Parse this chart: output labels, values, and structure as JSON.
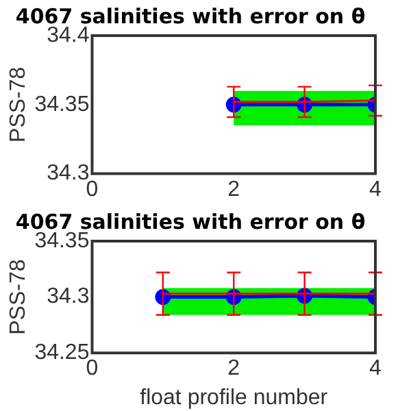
{
  "chart_data": [
    {
      "type": "line",
      "title": "4067 salinities with error on θ",
      "ylabel": "PSS-78",
      "xlim": [
        0,
        4
      ],
      "xticks": [
        0,
        2,
        4
      ],
      "ylim": [
        34.3,
        34.4
      ],
      "yticks": [
        34.3,
        34.35,
        34.4
      ],
      "grid": false,
      "legend": false,
      "series": [
        {
          "type": "area",
          "color": "#00ee00",
          "x": [
            2,
            3,
            4
          ],
          "values": [
            null,
            null,
            null
          ],
          "lower": [
            34.335,
            34.335,
            34.335
          ],
          "upper": [
            34.36,
            34.36,
            34.36
          ]
        },
        {
          "type": "line",
          "color": "#ff0000",
          "x": [
            2,
            3,
            4
          ],
          "values": [
            34.352,
            34.352,
            34.353
          ],
          "errors": [
            0.011,
            0.011,
            0.011
          ],
          "marker": "none"
        },
        {
          "type": "line",
          "color": "#0000ff",
          "x": [
            2,
            3,
            4
          ],
          "values": [
            34.35,
            34.35,
            34.35
          ],
          "marker": "circle"
        }
      ]
    },
    {
      "type": "line",
      "title": "4067 salinities with error on θ",
      "ylabel": "PSS-78",
      "xlabel": "float profile number",
      "xlim": [
        0,
        4
      ],
      "xticks": [
        0,
        2,
        4
      ],
      "ylim": [
        34.25,
        34.35
      ],
      "yticks": [
        34.25,
        34.3,
        34.35
      ],
      "grid": false,
      "legend": false,
      "series": [
        {
          "type": "area",
          "color": "#00ee00",
          "x": [
            1,
            2,
            3,
            4
          ],
          "values": [
            null,
            null,
            null,
            null
          ],
          "lower": [
            34.284,
            34.284,
            34.284,
            34.284
          ],
          "upper": [
            34.308,
            34.308,
            34.308,
            34.308
          ]
        },
        {
          "type": "line",
          "color": "#ff0000",
          "x": [
            1,
            2,
            3,
            4
          ],
          "values": [
            34.303,
            34.303,
            34.303,
            34.303
          ],
          "errors": [
            0.019,
            0.019,
            0.019,
            0.019
          ],
          "marker": "none"
        },
        {
          "type": "line",
          "color": "#0000ff",
          "x": [
            1,
            2,
            3,
            4
          ],
          "values": [
            34.3,
            34.3,
            34.301,
            34.3
          ],
          "marker": "circle"
        }
      ]
    }
  ]
}
